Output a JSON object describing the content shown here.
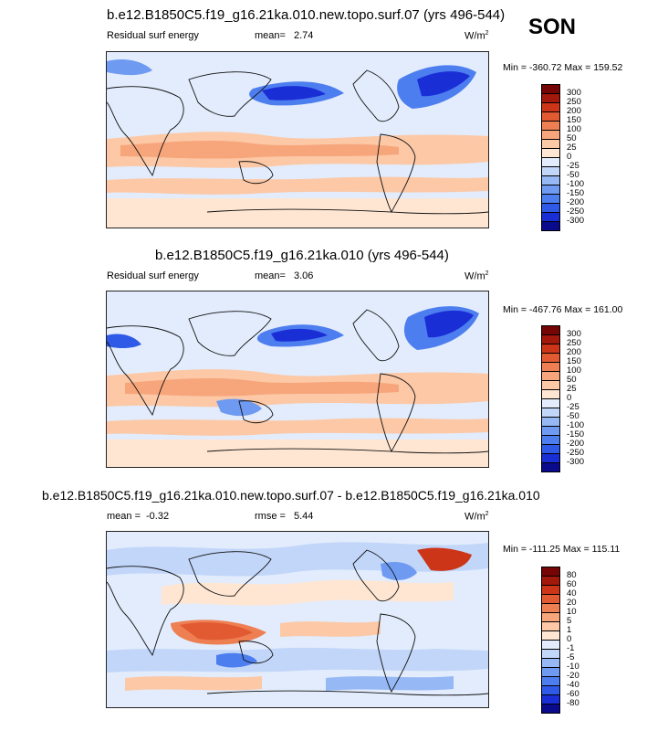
{
  "season": "SON",
  "palettes": {
    "main": [
      "#0a0a8c",
      "#1a2ed6",
      "#2f5ae8",
      "#4d7eef",
      "#6e9af2",
      "#96b8f5",
      "#c2d6f9",
      "#e2ecfc",
      "#ffe6d2",
      "#fcc8a6",
      "#f7a67c",
      "#ee7f52",
      "#e25a32",
      "#cc3517",
      "#a2180a",
      "#760505"
    ],
    "diff": [
      "#0a0a8c",
      "#1a2ed6",
      "#2f5ae8",
      "#4d7eef",
      "#6e9af2",
      "#96b8f5",
      "#c2d6f9",
      "#e2ecfc",
      "#ffe6d2",
      "#fcc8a6",
      "#f7a67c",
      "#ee7f52",
      "#e25a32",
      "#cc3517",
      "#a2180a",
      "#760505"
    ]
  },
  "panels": [
    {
      "title": "b.e12.B1850C5.f19_g16.21ka.010.new.topo.surf.07 (yrs 496-544)",
      "left_label": "Residual surf energy",
      "mean_label": "mean=",
      "mean_value": "2.74",
      "rmse_label": "",
      "rmse_value": "",
      "units": "W/m",
      "units_sup": "2",
      "minmax": "Min = -360.72 Max = 159.52",
      "colorbar_ticks": [
        "300",
        "250",
        "200",
        "150",
        "100",
        "50",
        "25",
        "0",
        "-25",
        "-50",
        "-100",
        "-150",
        "-200",
        "-250",
        "-300"
      ]
    },
    {
      "title": "b.e12.B1850C5.f19_g16.21ka.010 (yrs 496-544)",
      "left_label": "Residual surf energy",
      "mean_label": "mean=",
      "mean_value": "3.06",
      "rmse_label": "",
      "rmse_value": "",
      "units": "W/m",
      "units_sup": "2",
      "minmax": "Min = -467.76 Max = 161.00",
      "colorbar_ticks": [
        "300",
        "250",
        "200",
        "150",
        "100",
        "50",
        "25",
        "0",
        "-25",
        "-50",
        "-100",
        "-150",
        "-200",
        "-250",
        "-300"
      ]
    },
    {
      "title": "b.e12.B1850C5.f19_g16.21ka.010.new.topo.surf.07 - b.e12.B1850C5.f19_g16.21ka.010",
      "left_label": "mean =",
      "mean_label": "",
      "mean_value": "-0.32",
      "rmse_label": "rmse =",
      "rmse_value": "5.44",
      "units": "W/m",
      "units_sup": "2",
      "minmax": "Min = -111.25 Max = 115.11",
      "colorbar_ticks": [
        "80",
        "60",
        "40",
        "20",
        "10",
        "5",
        "1",
        "0",
        "-1",
        "-5",
        "-10",
        "-20",
        "-40",
        "-60",
        "-80"
      ]
    }
  ]
}
